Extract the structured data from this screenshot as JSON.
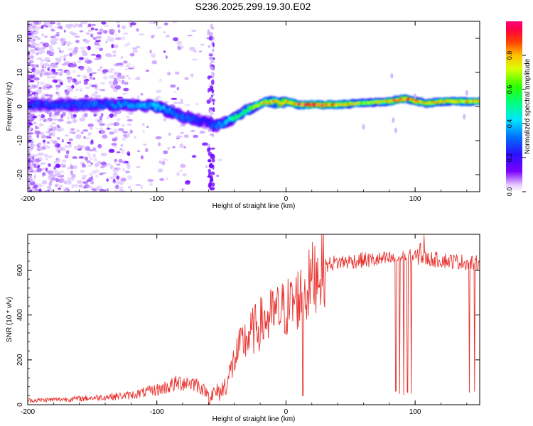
{
  "title": "S236.2025.299.19.30.E02",
  "chart_data": [
    {
      "type": "heatmap",
      "name": "spectrogram",
      "xlabel": "Height of straight line (km)",
      "ylabel": "Frequency (Hz)",
      "xlim": [
        -200,
        150
      ],
      "ylim": [
        -25,
        25
      ],
      "xticks": [
        "-200",
        "-100",
        "0",
        "100"
      ],
      "xtick_values": [
        -200,
        -100,
        0,
        100
      ],
      "yticks": [
        "-20",
        "-10",
        "0",
        "10",
        "20"
      ],
      "ytick_values": [
        -20,
        -10,
        0,
        10,
        20
      ],
      "colorbar": {
        "label": "Normalized spectral amplitude",
        "range": [
          0,
          1
        ],
        "ticks": [
          "0.0",
          "0.2",
          "0.4",
          "0.6",
          "0.8"
        ],
        "tick_values": [
          0,
          0.2,
          0.4,
          0.6,
          0.8
        ]
      },
      "ridge": {
        "x": [
          -200,
          -150,
          -120,
          -100,
          -90,
          -80,
          -70,
          -62,
          -55,
          -48,
          -40,
          -30,
          -20,
          -12,
          -5,
          0,
          10,
          20,
          40,
          60,
          80,
          85,
          90,
          95,
          100,
          110,
          120,
          150
        ],
        "freq": [
          0.5,
          0.5,
          0.5,
          0,
          -1.5,
          -3,
          -4,
          -4.5,
          -5.5,
          -5,
          -3,
          -1,
          1,
          1.5,
          1,
          1.5,
          0.5,
          0.5,
          0.5,
          1,
          1.5,
          1.8,
          2.2,
          2.2,
          1.5,
          1,
          1.5,
          1.5
        ],
        "amp": [
          0.25,
          0.3,
          0.35,
          0.4,
          0.35,
          0.3,
          0.3,
          0.2,
          0.3,
          0.35,
          0.55,
          0.6,
          0.75,
          0.8,
          0.8,
          0.85,
          0.95,
          0.98,
          0.9,
          0.7,
          0.8,
          0.9,
          0.95,
          0.95,
          0.85,
          0.8,
          0.85,
          0.8
        ]
      }
    },
    {
      "type": "line",
      "name": "snr",
      "xlabel": "Height of straight line (km)",
      "ylabel": "SNR (10 * v/v)",
      "xlim": [
        -200,
        150
      ],
      "ylim": [
        0,
        760
      ],
      "xticks": [
        "-200",
        "-100",
        "0",
        "100"
      ],
      "xtick_values": [
        -200,
        -100,
        0,
        100
      ],
      "yticks": [
        "0",
        "200",
        "400",
        "600"
      ],
      "ytick_values": [
        0,
        200,
        400,
        600
      ],
      "color": "#e8322e",
      "x": [
        -200,
        -180,
        -160,
        -140,
        -120,
        -110,
        -100,
        -90,
        -80,
        -70,
        -60,
        -50,
        -45,
        -40,
        -35,
        -30,
        -25,
        -20,
        -15,
        -10,
        -5,
        0,
        5,
        10,
        15,
        20,
        25,
        30,
        35,
        40,
        50,
        60,
        70,
        80,
        90,
        100,
        110,
        120,
        130,
        140,
        150
      ],
      "y": [
        15,
        18,
        22,
        28,
        35,
        45,
        55,
        70,
        85,
        80,
        40,
        60,
        110,
        200,
        260,
        300,
        330,
        360,
        380,
        400,
        415,
        430,
        450,
        480,
        500,
        560,
        600,
        620,
        630,
        635,
        640,
        645,
        645,
        650,
        655,
        660,
        650,
        645,
        640,
        635,
        630
      ],
      "dropouts": [
        {
          "x": 13,
          "y": 40
        },
        {
          "x": 85,
          "y": 60
        },
        {
          "x": 88,
          "y": 50
        },
        {
          "x": 91,
          "y": 45
        },
        {
          "x": 94,
          "y": 55
        },
        {
          "x": 97,
          "y": 50
        },
        {
          "x": 142,
          "y": 55
        },
        {
          "x": 146,
          "y": 60
        }
      ],
      "peaks": [
        {
          "x": -35,
          "y": 340
        },
        {
          "x": 104,
          "y": 720
        },
        {
          "x": 107,
          "y": 755
        }
      ]
    }
  ]
}
